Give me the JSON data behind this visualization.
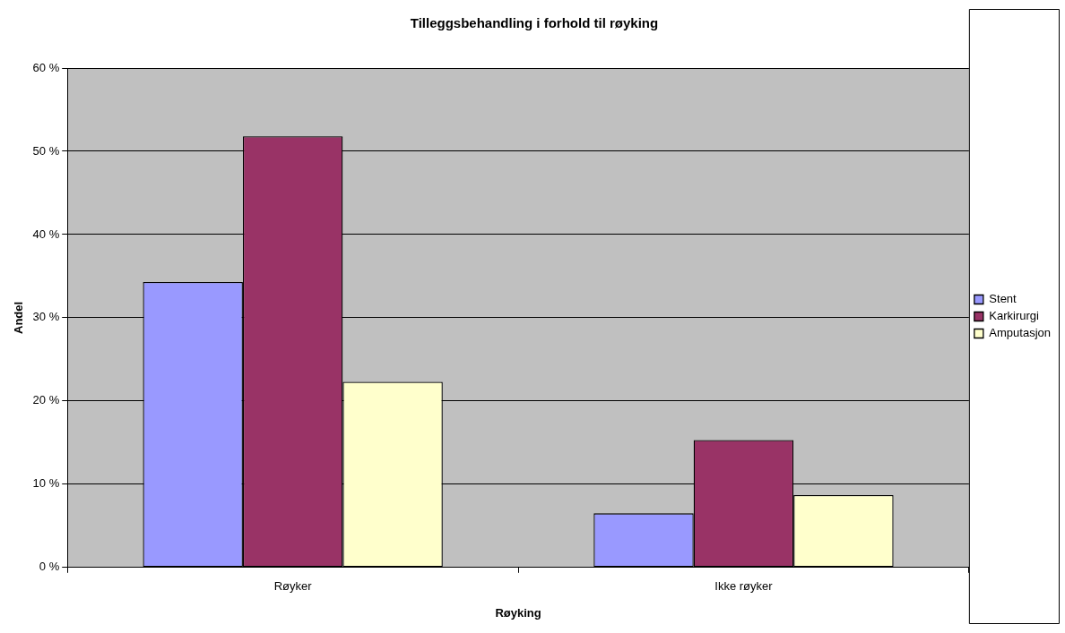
{
  "chart_data": {
    "type": "bar",
    "title": "Tilleggsbehandling i forhold til røyking",
    "xlabel": "Røyking",
    "ylabel": "Andel",
    "categories": [
      "Røyker",
      "Ikke røyker"
    ],
    "series": [
      {
        "name": "Stent",
        "color": "#9999ff",
        "values": [
          34.3,
          6.5
        ]
      },
      {
        "name": "Karkirurgi",
        "color": "#993366",
        "values": [
          51.8,
          15.3
        ]
      },
      {
        "name": "Amputasjon",
        "color": "#ffffcc",
        "values": [
          22.3,
          8.7
        ]
      }
    ],
    "ylim": [
      0,
      60
    ],
    "yticks": [
      {
        "value": 0,
        "label": "0 %"
      },
      {
        "value": 10,
        "label": "10 %"
      },
      {
        "value": 20,
        "label": "20 %"
      },
      {
        "value": 30,
        "label": "30 %"
      },
      {
        "value": 40,
        "label": "40 %"
      },
      {
        "value": 50,
        "label": "50 %"
      },
      {
        "value": 60,
        "label": "60 %"
      }
    ],
    "grid": "y",
    "legend": "right"
  }
}
